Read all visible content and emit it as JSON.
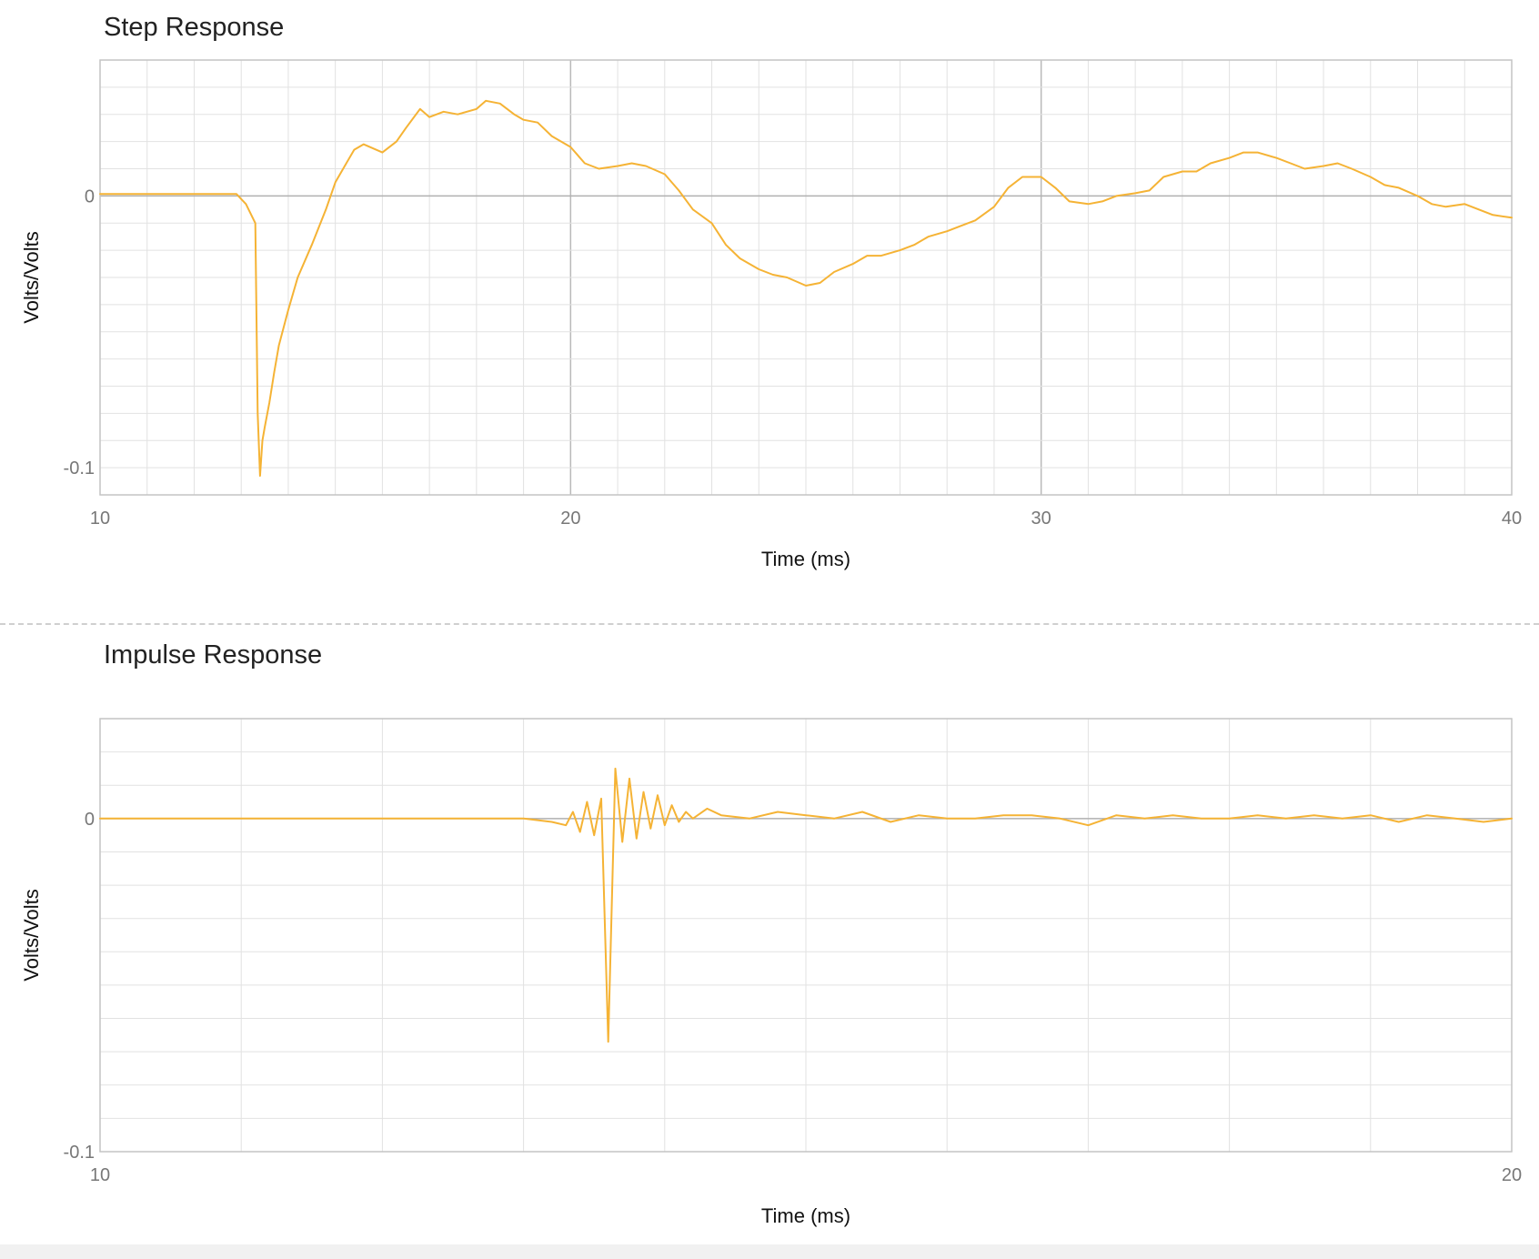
{
  "chart_data": [
    {
      "type": "line",
      "title": "Step Response",
      "xlabel": "Time (ms)",
      "ylabel": "Volts/Volts",
      "xlim": [
        10,
        40
      ],
      "ylim": [
        -0.11,
        0.05
      ],
      "xticks": [
        10,
        20,
        30,
        40
      ],
      "xtick_labels": [
        "10",
        "20",
        "30",
        "40"
      ],
      "yticks": [
        0,
        -0.1
      ],
      "ytick_labels": [
        "0",
        "-0.1"
      ],
      "minor_x_step": 1,
      "minor_y_step": 0.01,
      "major_x_step": 10,
      "grid": true,
      "legend": "none",
      "color": "#f5b335",
      "series": [
        {
          "x": [
            10,
            12.5,
            12.9,
            13.1,
            13.3,
            13.35,
            13.4,
            13.45,
            13.5,
            13.6,
            13.7,
            13.8,
            14.0,
            14.2,
            14.5,
            14.8,
            15.0,
            15.2,
            15.4,
            15.6,
            16.0,
            16.3,
            16.5,
            16.8,
            17.0,
            17.3,
            17.6,
            18.0,
            18.2,
            18.5,
            18.8,
            19.0,
            19.3,
            19.6,
            20.0,
            20.3,
            20.6,
            21.0,
            21.3,
            21.6,
            22.0,
            22.3,
            22.6,
            23.0,
            23.3,
            23.6,
            24.0,
            24.3,
            24.6,
            25.0,
            25.3,
            25.6,
            26.0,
            26.3,
            26.6,
            27.0,
            27.3,
            27.6,
            28.0,
            28.3,
            28.6,
            29.0,
            29.3,
            29.6,
            30.0,
            30.3,
            30.6,
            31.0,
            31.3,
            31.6,
            32.0,
            32.3,
            32.6,
            33.0,
            33.3,
            33.6,
            34.0,
            34.3,
            34.6,
            35.0,
            35.3,
            35.6,
            36.0,
            36.3,
            36.6,
            37.0,
            37.3,
            37.6,
            38.0,
            38.3,
            38.6,
            39.0,
            39.3,
            39.6,
            40.0
          ],
          "y": [
            0.0007,
            0.0007,
            0.0007,
            -0.003,
            -0.01,
            -0.08,
            -0.103,
            -0.09,
            -0.085,
            -0.076,
            -0.065,
            -0.055,
            -0.042,
            -0.03,
            -0.018,
            -0.005,
            0.005,
            0.011,
            0.017,
            0.019,
            0.016,
            0.02,
            0.025,
            0.032,
            0.029,
            0.031,
            0.03,
            0.032,
            0.035,
            0.034,
            0.03,
            0.028,
            0.027,
            0.022,
            0.018,
            0.012,
            0.01,
            0.011,
            0.012,
            0.011,
            0.008,
            0.002,
            -0.005,
            -0.01,
            -0.018,
            -0.023,
            -0.027,
            -0.029,
            -0.03,
            -0.033,
            -0.032,
            -0.028,
            -0.025,
            -0.022,
            -0.022,
            -0.02,
            -0.018,
            -0.015,
            -0.013,
            -0.011,
            -0.009,
            -0.004,
            0.003,
            0.007,
            0.007,
            0.003,
            -0.002,
            -0.003,
            -0.002,
            0.0,
            0.001,
            0.002,
            0.007,
            0.009,
            0.009,
            0.012,
            0.014,
            0.016,
            0.016,
            0.014,
            0.012,
            0.01,
            0.011,
            0.012,
            0.01,
            0.007,
            0.004,
            0.003,
            0.0,
            -0.003,
            -0.004,
            -0.003,
            -0.005,
            -0.007,
            -0.008
          ]
        }
      ]
    },
    {
      "type": "line",
      "title": "Impulse Response",
      "xlabel": "Time (ms)",
      "ylabel": "Volts/Volts",
      "xlim": [
        10,
        20
      ],
      "ylim": [
        -0.1,
        0.03
      ],
      "xticks": [
        10,
        20
      ],
      "xtick_labels": [
        "10",
        "20"
      ],
      "yticks": [
        0,
        -0.1
      ],
      "ytick_labels": [
        "0",
        "-0.1"
      ],
      "minor_x_step": 1,
      "minor_y_step": 0.01,
      "major_x_step": 10,
      "grid": true,
      "legend": "none",
      "color": "#f5b335",
      "series": [
        {
          "x": [
            10,
            13.0,
            13.2,
            13.3,
            13.35,
            13.4,
            13.45,
            13.5,
            13.55,
            13.6,
            13.65,
            13.7,
            13.75,
            13.8,
            13.85,
            13.9,
            13.95,
            14.0,
            14.05,
            14.1,
            14.15,
            14.2,
            14.3,
            14.4,
            14.6,
            14.8,
            15.0,
            15.2,
            15.4,
            15.6,
            15.8,
            16.0,
            16.2,
            16.4,
            16.6,
            16.8,
            17.0,
            17.2,
            17.4,
            17.6,
            17.8,
            18.0,
            18.2,
            18.4,
            18.6,
            18.8,
            19.0,
            19.2,
            19.4,
            19.6,
            19.8,
            20.0
          ],
          "y": [
            0.0,
            0.0,
            -0.001,
            -0.002,
            0.002,
            -0.004,
            0.005,
            -0.005,
            0.006,
            -0.067,
            0.015,
            -0.007,
            0.012,
            -0.006,
            0.008,
            -0.003,
            0.007,
            -0.002,
            0.004,
            -0.001,
            0.002,
            0.0,
            0.003,
            0.001,
            0.0,
            0.002,
            0.001,
            0.0,
            0.002,
            -0.001,
            0.001,
            0.0,
            0.0,
            0.001,
            0.001,
            0.0,
            -0.002,
            0.001,
            0.0,
            0.001,
            0.0,
            0.0,
            0.001,
            0.0,
            0.001,
            0.0,
            0.001,
            -0.001,
            0.001,
            0.0,
            -0.001,
            0.0
          ]
        }
      ]
    }
  ]
}
